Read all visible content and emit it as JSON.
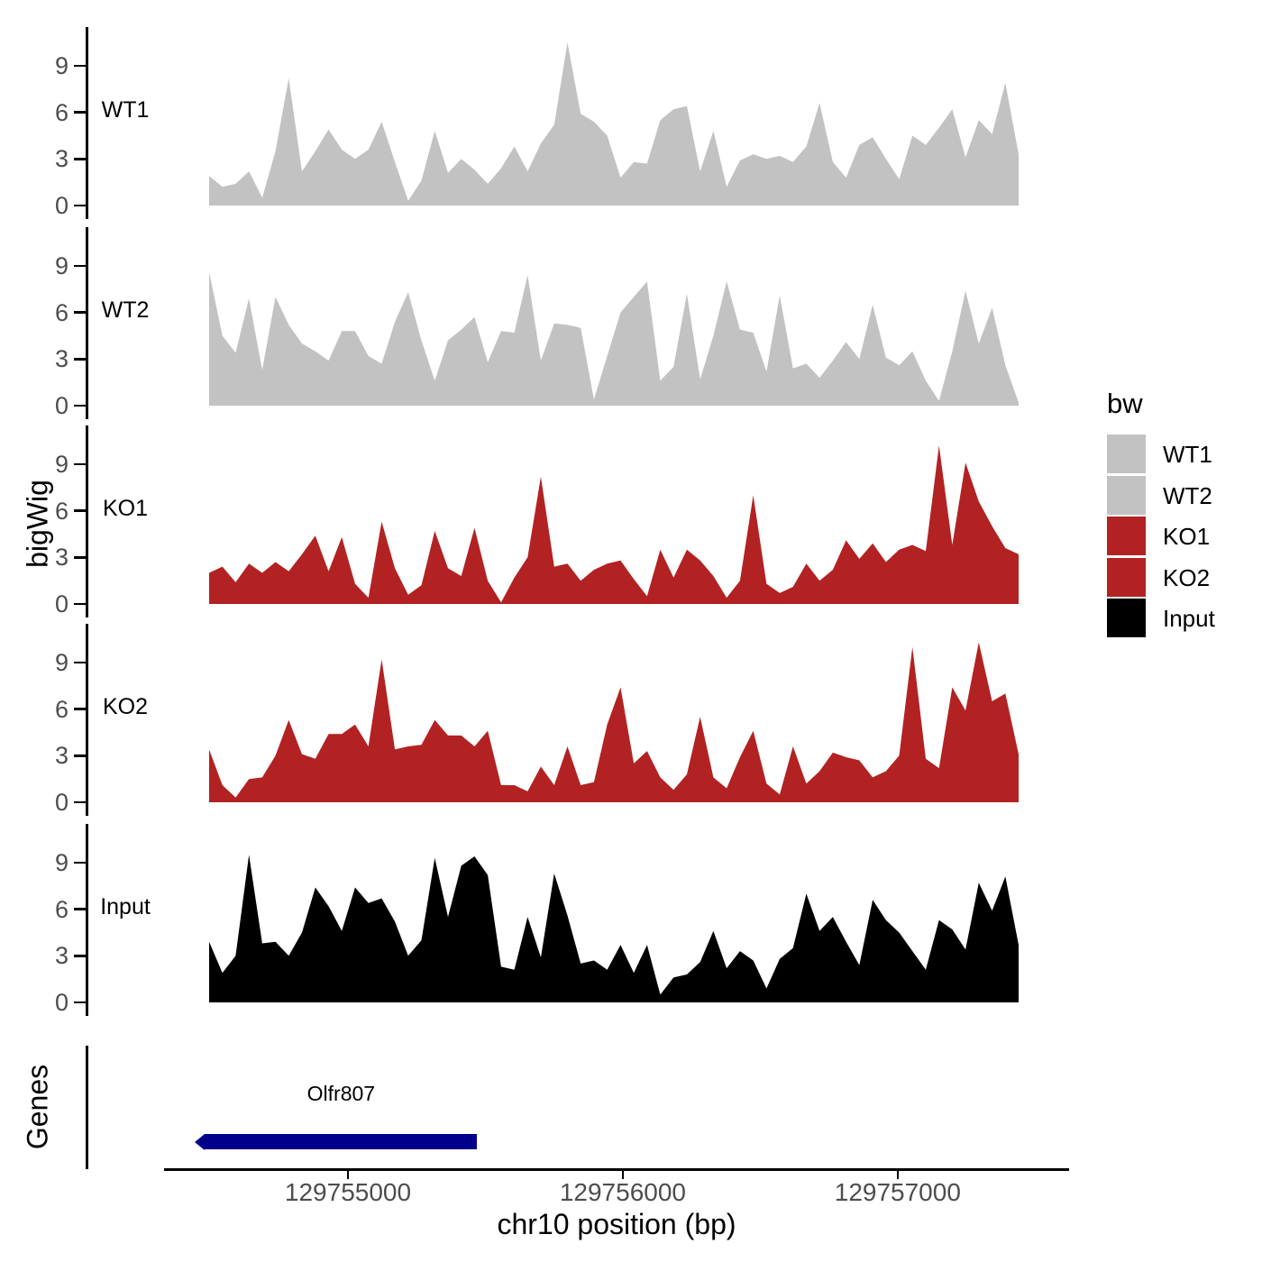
{
  "figure": {
    "background": "#ffffff"
  },
  "chart_data": {
    "type": "area",
    "title": "",
    "xlabel": "chr10 position (bp)",
    "ylabel": "bigWig",
    "x_range": [
      129754495,
      129757440
    ],
    "x_ticks": [
      129755000,
      129756000,
      129757000
    ],
    "y_ticks": [
      0,
      3,
      6,
      9
    ],
    "y_range": [
      0,
      10.5
    ],
    "grid": false,
    "legend_position": "right",
    "tracks": [
      {
        "name": "WT1",
        "color": "#c2c2c2",
        "values": [
          1.9,
          1.2,
          1.4,
          2.2,
          0.5,
          3.5,
          8.2,
          2.2,
          3.5,
          4.9,
          3.6,
          3.0,
          3.6,
          5.4,
          2.8,
          0.3,
          1.6,
          4.8,
          2.1,
          3.0,
          2.3,
          1.4,
          2.4,
          3.8,
          2.2,
          4.0,
          5.2,
          10.5,
          5.9,
          5.4,
          4.5,
          1.8,
          2.8,
          2.7,
          5.5,
          6.2,
          6.4,
          2.2,
          4.8,
          1.2,
          2.9,
          3.3,
          3.0,
          3.2,
          2.8,
          3.8,
          6.6,
          2.8,
          1.8,
          3.9,
          4.4,
          3.0,
          1.7,
          4.5,
          3.9,
          5.0,
          6.2,
          3.1,
          5.5,
          4.6,
          7.9,
          3.3
        ]
      },
      {
        "name": "WT2",
        "color": "#c2c2c2",
        "values": [
          8.6,
          4.5,
          3.4,
          6.9,
          2.3,
          7.0,
          5.2,
          4.0,
          3.5,
          2.9,
          4.8,
          4.8,
          3.2,
          2.7,
          5.4,
          7.3,
          4.2,
          1.6,
          4.2,
          4.9,
          5.7,
          2.8,
          4.8,
          4.7,
          8.4,
          2.9,
          5.3,
          5.2,
          5.0,
          0.4,
          3.2,
          6.0,
          7.0,
          8.0,
          1.6,
          2.5,
          7.2,
          1.7,
          4.5,
          8.0,
          4.9,
          4.7,
          2.2,
          7.1,
          2.4,
          2.7,
          1.8,
          2.9,
          4.1,
          3.0,
          6.5,
          3.1,
          2.6,
          3.5,
          1.6,
          0.3,
          3.5,
          7.4,
          4.0,
          6.3,
          2.6,
          0.2
        ]
      },
      {
        "name": "KO1",
        "color": "#b22222",
        "values": [
          2.0,
          2.4,
          1.4,
          2.6,
          2.0,
          2.7,
          2.1,
          3.2,
          4.4,
          2.1,
          4.3,
          1.3,
          0.4,
          5.3,
          2.3,
          0.6,
          1.2,
          4.7,
          2.3,
          1.8,
          4.9,
          1.5,
          0.1,
          1.7,
          3.0,
          8.2,
          2.4,
          2.6,
          1.5,
          2.2,
          2.6,
          2.8,
          1.6,
          0.5,
          3.5,
          1.7,
          3.5,
          2.8,
          1.8,
          0.4,
          1.5,
          7.0,
          1.3,
          0.7,
          1.1,
          2.6,
          1.5,
          2.2,
          4.1,
          2.9,
          3.9,
          2.7,
          3.5,
          3.8,
          3.4,
          10.2,
          3.8,
          9.1,
          6.6,
          5.0,
          3.6,
          3.2
        ]
      },
      {
        "name": "KO2",
        "color": "#b22222",
        "values": [
          3.4,
          1.1,
          0.3,
          1.5,
          1.6,
          3.0,
          5.3,
          3.1,
          2.8,
          4.4,
          4.4,
          5.0,
          3.6,
          9.2,
          3.4,
          3.6,
          3.7,
          5.3,
          4.3,
          4.3,
          3.6,
          4.6,
          1.1,
          1.1,
          0.7,
          2.3,
          1.1,
          3.6,
          1.1,
          1.3,
          5.0,
          7.4,
          2.5,
          3.3,
          1.6,
          0.8,
          1.8,
          5.5,
          1.6,
          0.9,
          2.9,
          4.6,
          1.2,
          0.5,
          3.6,
          1.2,
          2.0,
          3.2,
          2.9,
          2.7,
          1.6,
          2.0,
          3.0,
          10.0,
          2.8,
          2.2,
          7.4,
          5.9,
          10.3,
          6.5,
          7.0,
          3.1
        ]
      },
      {
        "name": "Input",
        "color": "#000000",
        "values": [
          3.9,
          1.9,
          3.0,
          9.5,
          3.8,
          3.9,
          3.0,
          4.5,
          7.4,
          6.2,
          4.6,
          7.4,
          6.4,
          6.7,
          5.2,
          3.0,
          4.0,
          9.3,
          5.5,
          8.8,
          9.4,
          8.2,
          2.3,
          2.1,
          5.5,
          2.9,
          8.3,
          5.6,
          2.5,
          2.7,
          2.1,
          3.7,
          1.9,
          3.7,
          0.5,
          1.6,
          1.8,
          2.6,
          4.6,
          2.2,
          3.3,
          2.7,
          0.9,
          2.8,
          3.5,
          7.0,
          4.6,
          5.5,
          3.9,
          2.4,
          6.6,
          5.3,
          4.5,
          3.3,
          2.1,
          5.3,
          4.7,
          3.4,
          7.7,
          5.9,
          8.1,
          3.7
        ]
      }
    ]
  },
  "genes_track": {
    "ylabel": "Genes",
    "genes": [
      {
        "name": "Olfr807",
        "start": 129754480,
        "end": 129755470,
        "strand": "-",
        "color": "#00008b"
      }
    ]
  },
  "legend": {
    "title": "bw",
    "entries": [
      {
        "label": "WT1",
        "color": "#c2c2c2"
      },
      {
        "label": "WT2",
        "color": "#c2c2c2"
      },
      {
        "label": "KO1",
        "color": "#b22222"
      },
      {
        "label": "KO2",
        "color": "#b22222"
      },
      {
        "label": "Input",
        "color": "#000000"
      }
    ]
  },
  "colors": {
    "axis": "#000000",
    "tick_label": "#4d4d4d"
  }
}
